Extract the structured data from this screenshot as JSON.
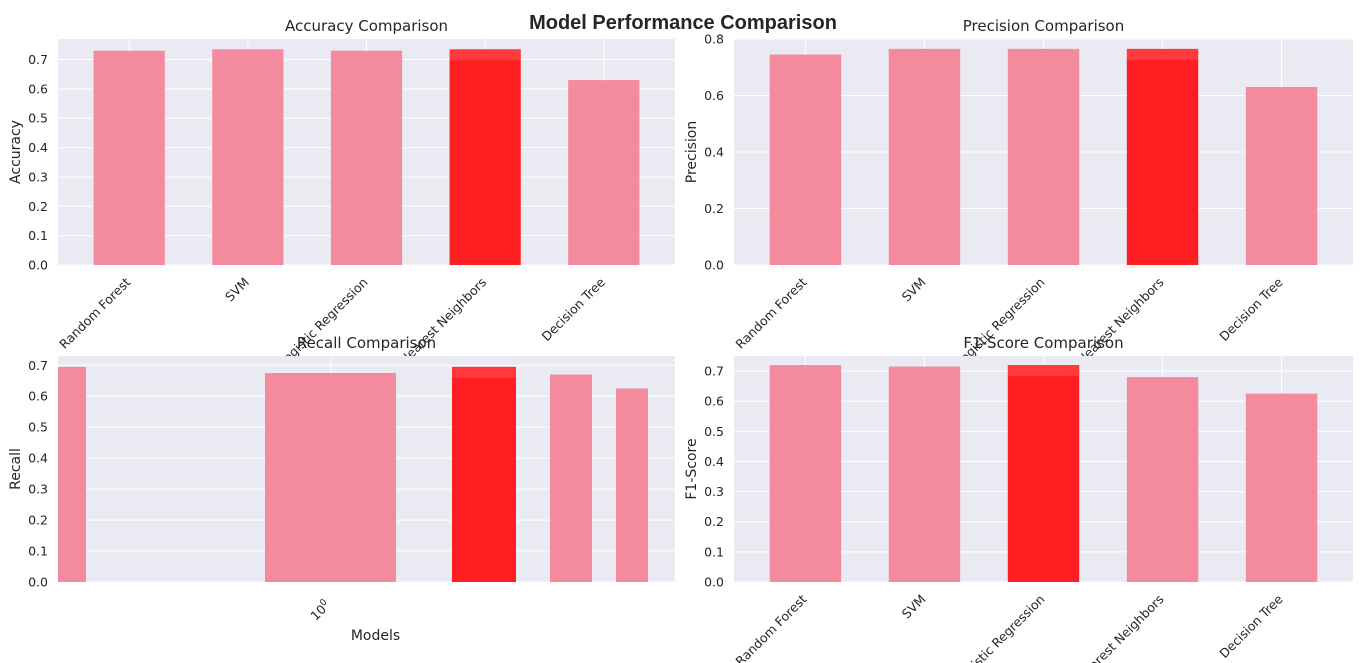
{
  "suptitle": "Model Performance Comparison",
  "colors": {
    "bar": "#f48a9d",
    "highlight": "#ff1e22",
    "panel_bg": "#eaeaf2",
    "grid": "#ffffff"
  },
  "chart_data": [
    {
      "type": "bar",
      "title": "Accuracy Comparison",
      "xlabel": "",
      "ylabel": "Accuracy",
      "categories": [
        "Random Forest",
        "SVM",
        "Logistic Regression",
        "K-Nearest Neighbors",
        "Decision Tree"
      ],
      "values": [
        0.73,
        0.735,
        0.73,
        0.735,
        0.63
      ],
      "highlight": "K-Nearest Neighbors",
      "ylim": [
        0,
        0.77
      ],
      "yticks": [
        "0.0",
        "0.1",
        "0.2",
        "0.3",
        "0.4",
        "0.5",
        "0.6",
        "0.7"
      ],
      "grid": true
    },
    {
      "type": "bar",
      "title": "Precision Comparison",
      "xlabel": "",
      "ylabel": "Precision",
      "categories": [
        "Random Forest",
        "SVM",
        "Logistic Regression",
        "K-Nearest Neighbors",
        "Decision Tree"
      ],
      "values": [
        0.745,
        0.765,
        0.765,
        0.765,
        0.63
      ],
      "highlight": "K-Nearest Neighbors",
      "ylim": [
        0,
        0.8
      ],
      "yticks": [
        "0.0",
        "0.2",
        "0.4",
        "0.6",
        "0.8"
      ],
      "grid": true
    },
    {
      "type": "bar",
      "title": "Recall Comparison",
      "xlabel": "Models",
      "ylabel": "Recall",
      "xscale": "log",
      "xticks": [
        "10"
      ],
      "xtick_exponent": "0",
      "values": [
        0.695,
        0.675,
        0.695,
        0.67,
        0.625
      ],
      "highlight_index": 2,
      "ylim": [
        0,
        0.73
      ],
      "yticks": [
        "0.0",
        "0.1",
        "0.2",
        "0.3",
        "0.4",
        "0.5",
        "0.6",
        "0.7"
      ],
      "grid": true
    },
    {
      "type": "bar",
      "title": "F1-Score Comparison",
      "xlabel": "",
      "ylabel": "F1-Score",
      "categories": [
        "Random Forest",
        "SVM",
        "Logistic Regression",
        "K-Nearest Neighbors",
        "Decision Tree"
      ],
      "values": [
        0.72,
        0.715,
        0.72,
        0.68,
        0.625
      ],
      "highlight": "Logistic Regression",
      "ylim": [
        0,
        0.75
      ],
      "yticks": [
        "0.0",
        "0.1",
        "0.2",
        "0.3",
        "0.4",
        "0.5",
        "0.6",
        "0.7"
      ],
      "grid": true
    }
  ]
}
